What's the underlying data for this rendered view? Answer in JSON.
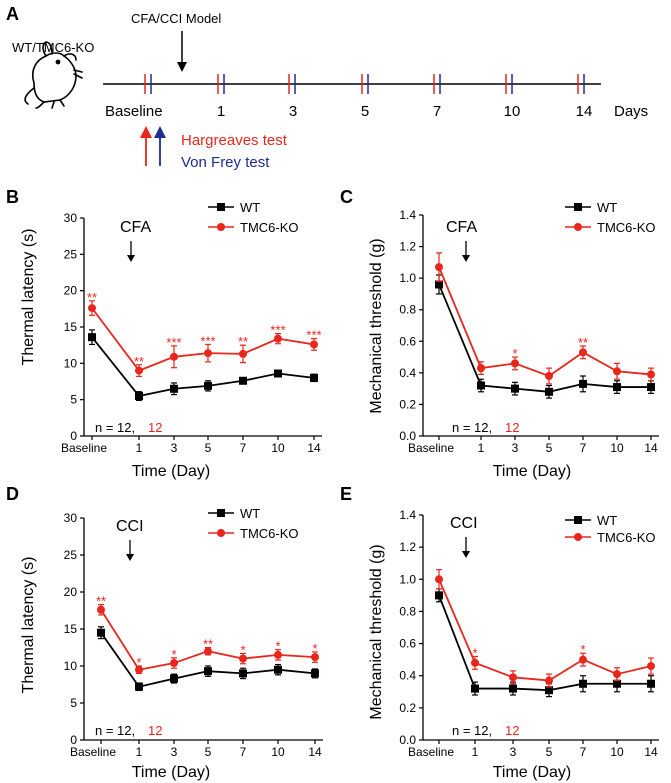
{
  "colors": {
    "wt": "#000000",
    "ko": "#e8261c",
    "vonfrey": "#1f2d8f",
    "hargreaves": "#e8261c"
  },
  "panelA": {
    "label": "A",
    "mouse_label": "WT/TMC6-KO",
    "model_label": "CFA/CCI Model",
    "timepoints": [
      "Baseline",
      "1",
      "3",
      "5",
      "7",
      "10",
      "14"
    ],
    "days_label": "Days",
    "legend": {
      "hargreaves": "Hargreaves test",
      "vonfrey": "Von Frey test"
    }
  },
  "chart_data": [
    {
      "id": "B",
      "panel_label": "B",
      "type": "line",
      "annotation": "CFA",
      "ylabel": "Thermal latency (s)",
      "xlabel": "Time (Day)",
      "ylim": [
        0,
        30
      ],
      "yticks": [
        0,
        5,
        10,
        15,
        20,
        25,
        30
      ],
      "categories": [
        "Baseline",
        "1",
        "3",
        "5",
        "7",
        "10",
        "14"
      ],
      "n_text": "n = 12,",
      "n_ko": "12",
      "series": [
        {
          "name": "WT",
          "values": [
            13.6,
            5.5,
            6.5,
            6.9,
            7.6,
            8.6,
            8.0
          ],
          "errors": [
            1.0,
            0.6,
            0.8,
            0.7,
            0.4,
            0.4,
            0.5
          ]
        },
        {
          "name": "TMC6-KO",
          "values": [
            17.6,
            9.0,
            10.9,
            11.4,
            11.3,
            13.4,
            12.6
          ],
          "errors": [
            1.0,
            0.8,
            1.5,
            1.2,
            1.2,
            0.7,
            0.8
          ]
        }
      ],
      "significance": [
        "**",
        "**",
        "***",
        "***",
        "**",
        "***",
        "***"
      ]
    },
    {
      "id": "C",
      "panel_label": "C",
      "type": "line",
      "annotation": "CFA",
      "ylabel": "Mechanical threshold (g)",
      "xlabel": "Time (Day)",
      "ylim": [
        0,
        1.4
      ],
      "yticks": [
        0,
        0.2,
        0.4,
        0.6,
        0.8,
        1.0,
        1.2,
        1.4
      ],
      "categories": [
        "Baseline",
        "1",
        "3",
        "5",
        "7",
        "10",
        "14"
      ],
      "n_text": "n = 12,",
      "n_ko": "12",
      "series": [
        {
          "name": "WT",
          "values": [
            0.96,
            0.32,
            0.3,
            0.28,
            0.33,
            0.31,
            0.31
          ],
          "errors": [
            0.06,
            0.04,
            0.04,
            0.04,
            0.05,
            0.04,
            0.04
          ]
        },
        {
          "name": "TMC6-KO",
          "values": [
            1.07,
            0.43,
            0.46,
            0.38,
            0.53,
            0.41,
            0.39
          ],
          "errors": [
            0.09,
            0.04,
            0.04,
            0.05,
            0.04,
            0.05,
            0.04
          ]
        }
      ],
      "significance": [
        "",
        "",
        "*",
        "",
        "**",
        "",
        ""
      ]
    },
    {
      "id": "D",
      "panel_label": "D",
      "type": "line",
      "annotation": "CCI",
      "ylabel": "Thermal latency (s)",
      "xlabel": "Time (Day)",
      "ylim": [
        0,
        30
      ],
      "yticks": [
        0,
        5,
        10,
        15,
        20,
        25,
        30
      ],
      "categories": [
        "Baseline",
        "1",
        "3",
        "5",
        "7",
        "10",
        "14"
      ],
      "n_text": "n = 12,",
      "n_ko": "12",
      "series": [
        {
          "name": "WT",
          "values": [
            14.5,
            7.2,
            8.3,
            9.3,
            9.0,
            9.5,
            9.0
          ],
          "errors": [
            0.8,
            0.5,
            0.6,
            0.7,
            0.7,
            0.7,
            0.6
          ]
        },
        {
          "name": "TMC6-KO",
          "values": [
            17.6,
            9.5,
            10.4,
            12.0,
            11.0,
            11.5,
            11.2
          ],
          "errors": [
            0.7,
            0.5,
            0.7,
            0.5,
            0.7,
            0.7,
            0.7
          ]
        }
      ],
      "significance": [
        "**",
        "*",
        "*",
        "**",
        "*",
        "*",
        "*"
      ]
    },
    {
      "id": "E",
      "panel_label": "E",
      "type": "line",
      "annotation": "CCI",
      "ylabel": "Mechanical threshold (g)",
      "xlabel": "Time (Day)",
      "ylim": [
        0,
        1.4
      ],
      "yticks": [
        0,
        0.2,
        0.4,
        0.6,
        0.8,
        1.0,
        1.2,
        1.4
      ],
      "categories": [
        "Baseline",
        "1",
        "3",
        "5",
        "7",
        "10",
        "14"
      ],
      "n_text": "n = 12,",
      "n_ko": "12",
      "series": [
        {
          "name": "WT",
          "values": [
            0.9,
            0.32,
            0.32,
            0.31,
            0.35,
            0.35,
            0.35
          ],
          "errors": [
            0.04,
            0.04,
            0.04,
            0.04,
            0.05,
            0.05,
            0.05
          ]
        },
        {
          "name": "TMC6-KO",
          "values": [
            1.0,
            0.48,
            0.39,
            0.37,
            0.5,
            0.41,
            0.46
          ],
          "errors": [
            0.06,
            0.04,
            0.04,
            0.04,
            0.04,
            0.04,
            0.05
          ]
        }
      ],
      "significance": [
        "",
        "*",
        "",
        "",
        "*",
        "",
        ""
      ]
    }
  ]
}
